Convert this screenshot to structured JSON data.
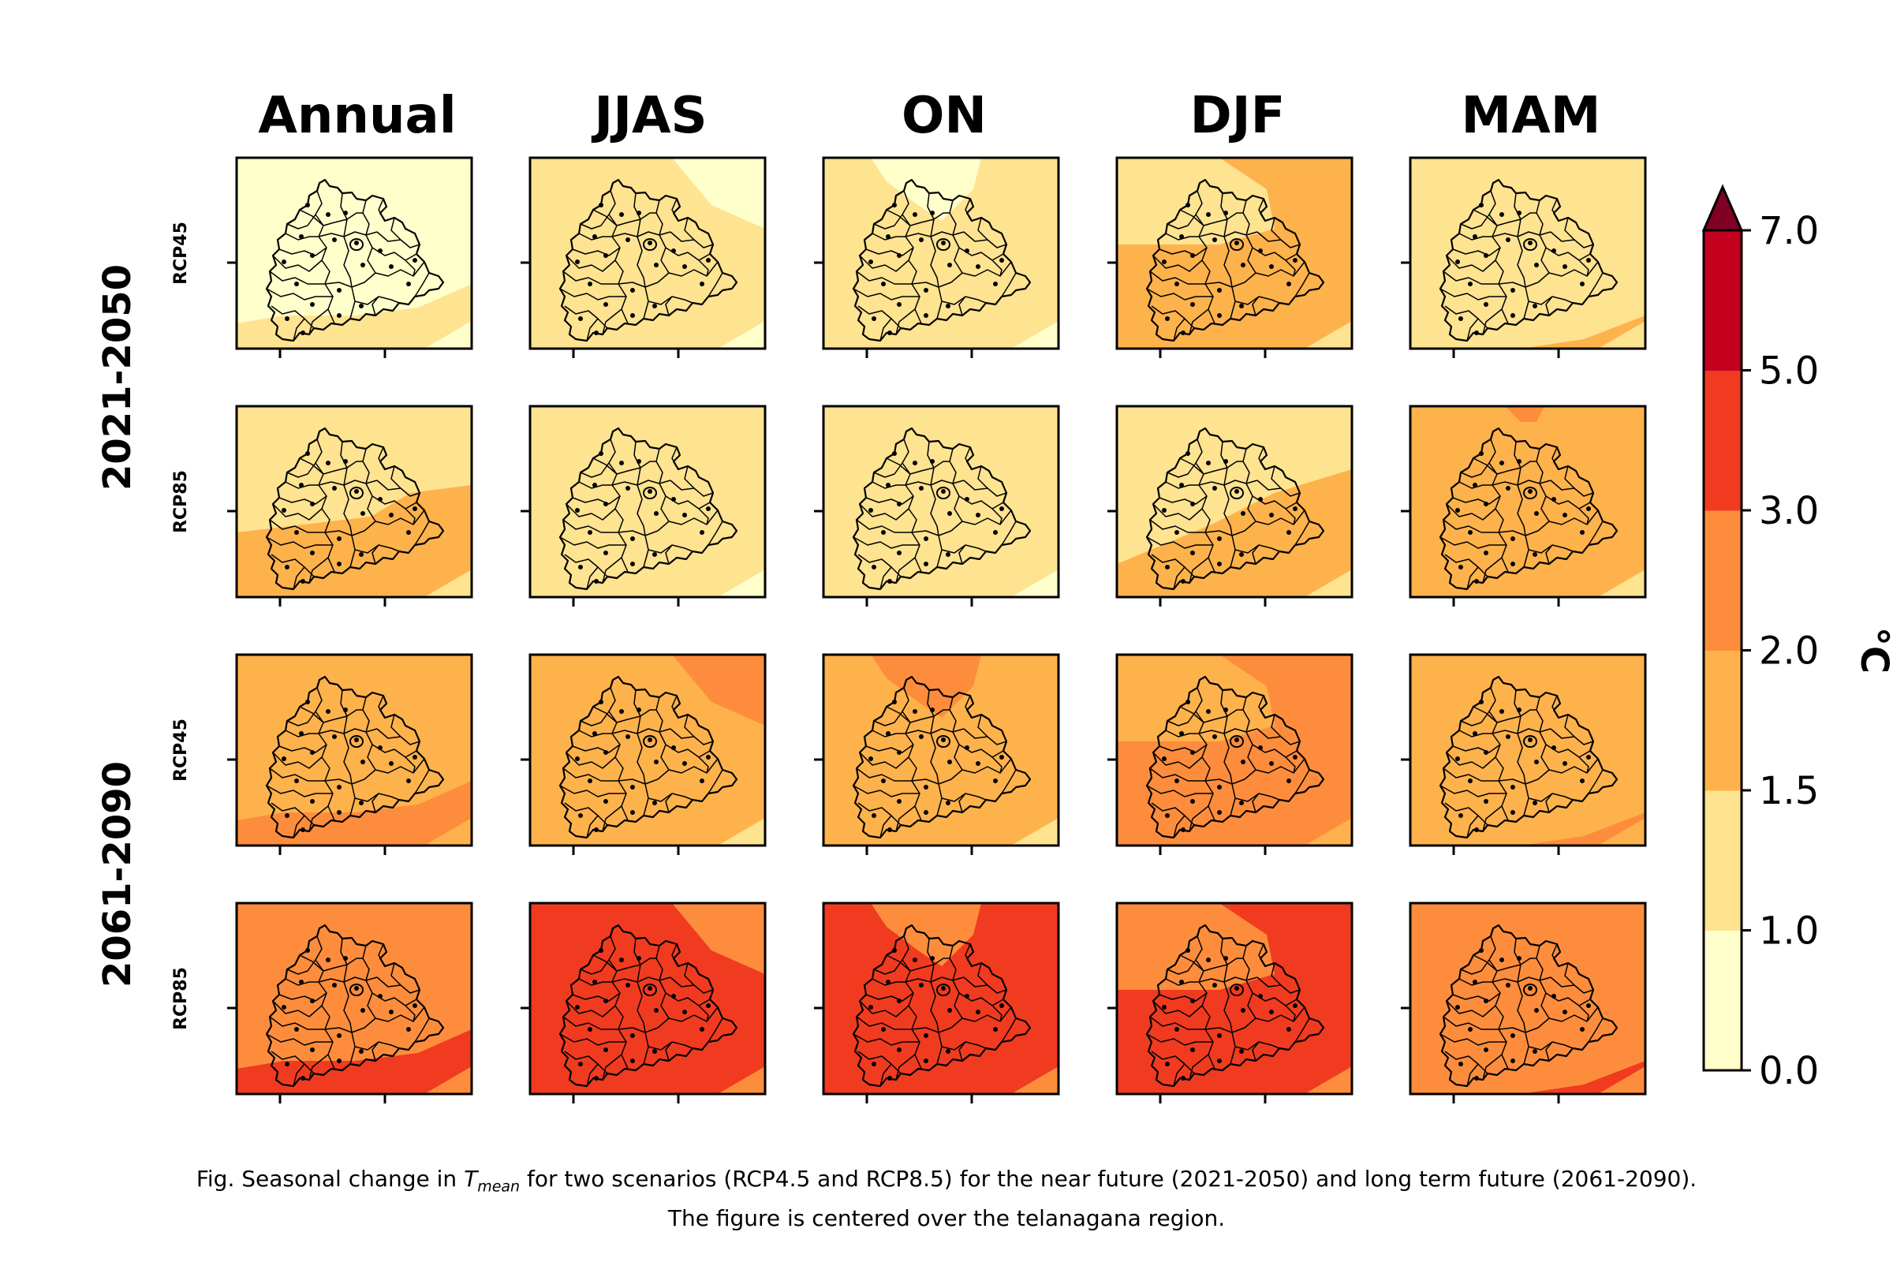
{
  "chart_data": {
    "type": "heatmap",
    "columns": [
      "Annual",
      "JJAS",
      "ON",
      "DJF",
      "MAM"
    ],
    "rows": [
      {
        "period": "2021-2050",
        "scenario": "RCP45",
        "base_levels": [
          1,
          1,
          1,
          2,
          2
        ],
        "minor_levels": [
          0,
          0,
          0,
          1,
          1
        ]
      },
      {
        "period": "2021-2050",
        "scenario": "RCP85",
        "base_levels": [
          2,
          1,
          1,
          2,
          2
        ],
        "minor_levels": [
          1,
          1,
          2,
          1,
          3
        ]
      },
      {
        "period": "2061-2090",
        "scenario": "RCP45",
        "base_levels": [
          3,
          2,
          2,
          3,
          3
        ],
        "minor_levels": [
          2,
          3,
          3,
          2,
          2
        ]
      },
      {
        "period": "2061-2090",
        "scenario": "RCP85",
        "base_levels": [
          4,
          4,
          4,
          4,
          4
        ],
        "minor_levels": [
          3,
          3,
          3,
          3,
          3
        ]
      }
    ],
    "colorbar": {
      "boundaries": [
        0.0,
        1.0,
        1.5,
        2.0,
        3.0,
        5.0,
        7.0
      ],
      "tick_labels": [
        "0.0",
        "1.0",
        "1.5",
        "2.0",
        "3.0",
        "5.0",
        "7.0"
      ],
      "colors": [
        "#ffffcc",
        "#fee391",
        "#feb24c",
        "#fd8d3c",
        "#f03b20",
        "#c4001f"
      ],
      "extend_color": "#800026",
      "unit": "°C"
    },
    "period_labels": [
      "2021-2050",
      "2061-2090"
    ],
    "caption_prefix": "Fig. Seasonal change in ",
    "caption_var": "T",
    "caption_var_sub": "mean",
    "caption_line1_rest": " for two scenarios (RCP4.5 and RCP8.5) for the near future (2021-2050) and long term future (2061-2090).",
    "caption_line2": "The figure is centered over the telanagana region."
  }
}
